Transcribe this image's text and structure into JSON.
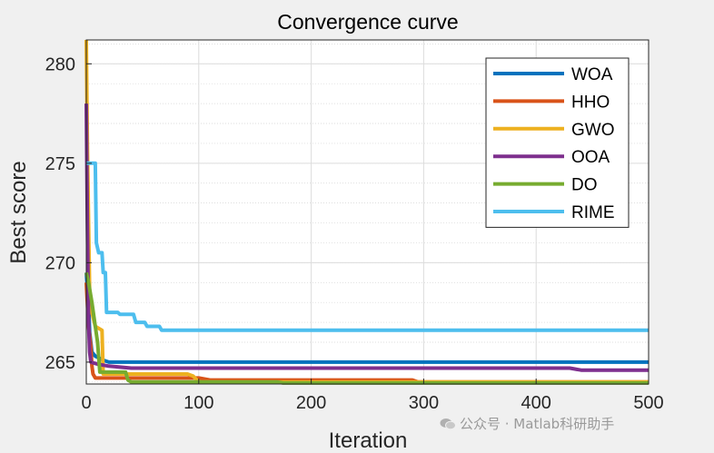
{
  "chart_data": {
    "type": "line",
    "title": "Convergence curve",
    "xlabel": "Iteration",
    "ylabel": "Best score",
    "xlim": [
      0,
      500
    ],
    "ylim": [
      263.9,
      281.2
    ],
    "xticks": [
      0,
      100,
      200,
      300,
      400,
      500
    ],
    "yticks": [
      265,
      270,
      275,
      280
    ],
    "grid": true,
    "minor_grid_y": true,
    "legend_position": "top-right",
    "series": [
      {
        "name": "WOA",
        "color": "#0072BD",
        "points": [
          [
            0,
            269.5
          ],
          [
            2,
            268.0
          ],
          [
            3,
            266.5
          ],
          [
            5,
            265.5
          ],
          [
            8,
            265.3
          ],
          [
            15,
            265.1
          ],
          [
            20,
            265.0
          ],
          [
            500,
            265.0
          ]
        ]
      },
      {
        "name": "HHO",
        "color": "#D95319",
        "points": [
          [
            0,
            269.0
          ],
          [
            2,
            266.8
          ],
          [
            4,
            265.8
          ],
          [
            5,
            264.8
          ],
          [
            6,
            264.4
          ],
          [
            8,
            264.2
          ],
          [
            100,
            264.2
          ],
          [
            110,
            264.1
          ],
          [
            290,
            264.1
          ],
          [
            295,
            264.0
          ],
          [
            500,
            264.0
          ]
        ]
      },
      {
        "name": "GWO",
        "color": "#EDB120",
        "points": [
          [
            0,
            281.2
          ],
          [
            1,
            276.0
          ],
          [
            2,
            272.0
          ],
          [
            3,
            268.5
          ],
          [
            5,
            267.5
          ],
          [
            8,
            266.8
          ],
          [
            14,
            266.6
          ],
          [
            15,
            264.4
          ],
          [
            90,
            264.4
          ],
          [
            95,
            264.3
          ],
          [
            100,
            264.0
          ],
          [
            500,
            264.0
          ]
        ]
      },
      {
        "name": "OOA",
        "color": "#7E2F8E",
        "points": [
          [
            0,
            278.0
          ],
          [
            1,
            272.0
          ],
          [
            2,
            267.0
          ],
          [
            3,
            265.5
          ],
          [
            4,
            265.0
          ],
          [
            10,
            264.9
          ],
          [
            20,
            264.8
          ],
          [
            40,
            264.7
          ],
          [
            430,
            264.7
          ],
          [
            440,
            264.6
          ],
          [
            500,
            264.6
          ]
        ]
      },
      {
        "name": "DO",
        "color": "#77AC30",
        "points": [
          [
            0,
            269.5
          ],
          [
            2,
            269.0
          ],
          [
            5,
            268.0
          ],
          [
            8,
            266.8
          ],
          [
            10,
            266.0
          ],
          [
            12,
            264.5
          ],
          [
            35,
            264.5
          ],
          [
            37,
            264.1
          ],
          [
            40,
            264.0
          ],
          [
            170,
            264.0
          ],
          [
            175,
            263.95
          ],
          [
            500,
            263.95
          ]
        ]
      },
      {
        "name": "RIME",
        "color": "#4DBEEE",
        "points": [
          [
            0,
            275.0
          ],
          [
            3,
            275.0
          ],
          [
            8,
            275.0
          ],
          [
            9,
            271.0
          ],
          [
            11,
            270.5
          ],
          [
            14,
            270.5
          ],
          [
            15,
            269.5
          ],
          [
            17,
            269.5
          ],
          [
            18,
            267.5
          ],
          [
            28,
            267.5
          ],
          [
            30,
            267.4
          ],
          [
            42,
            267.4
          ],
          [
            44,
            267.0
          ],
          [
            52,
            267.0
          ],
          [
            54,
            266.8
          ],
          [
            65,
            266.8
          ],
          [
            67,
            266.6
          ],
          [
            500,
            266.6
          ]
        ]
      }
    ]
  },
  "watermark": "公众号 · Matlab科研助手"
}
